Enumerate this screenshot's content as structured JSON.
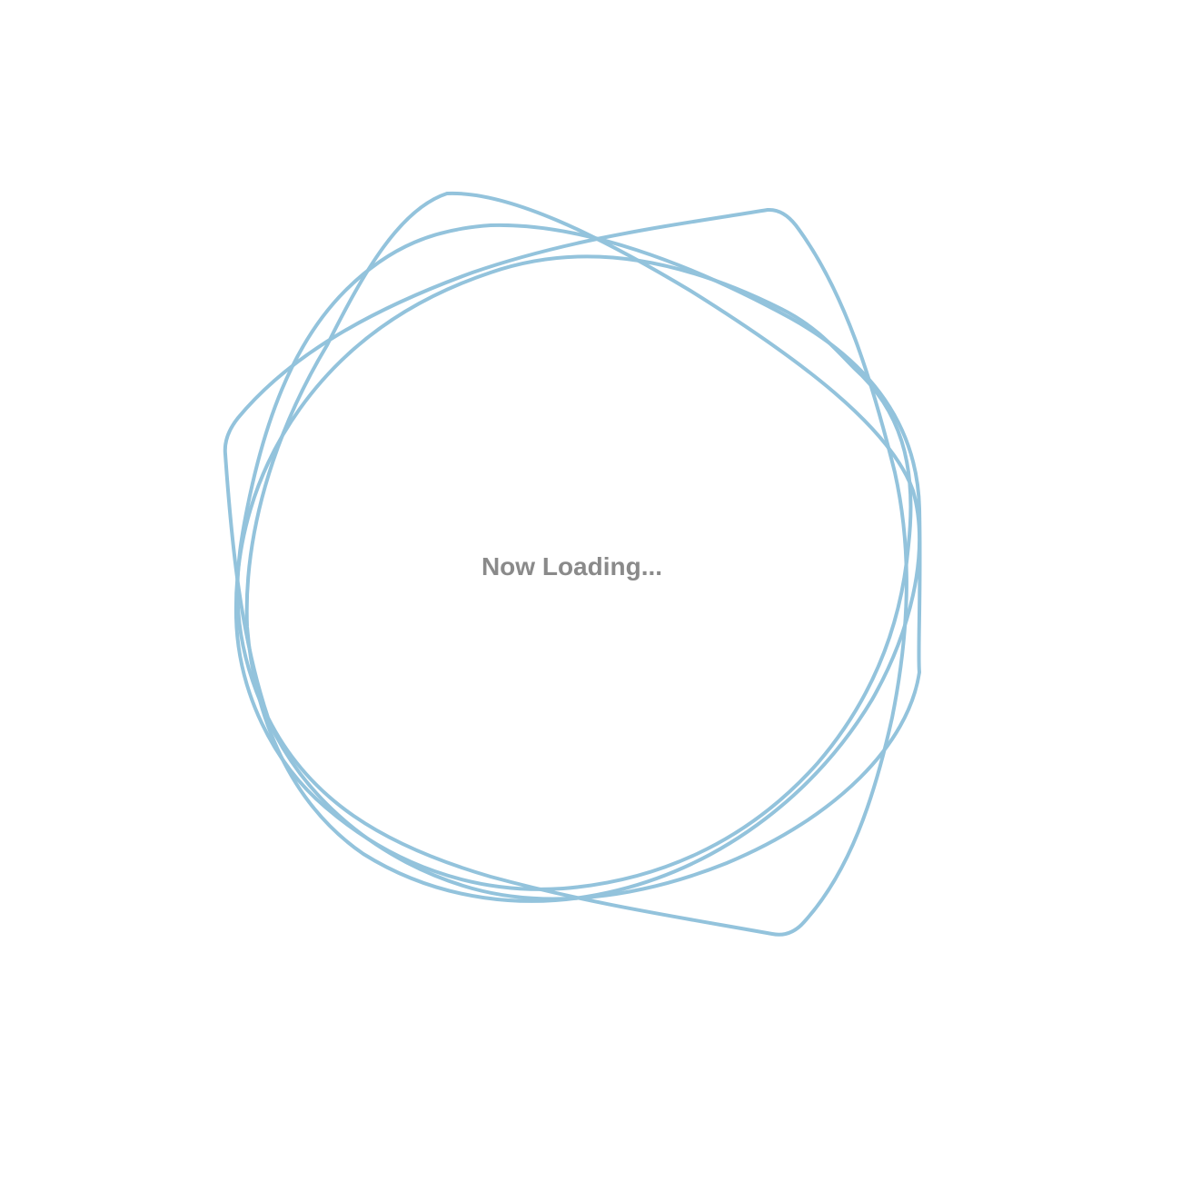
{
  "loader": {
    "message": "Now Loading...",
    "icon": "loading-rings-icon",
    "stroke_color": "#93c3dc",
    "text_color": "#8a8a8a",
    "background_color": "#ffffff"
  }
}
